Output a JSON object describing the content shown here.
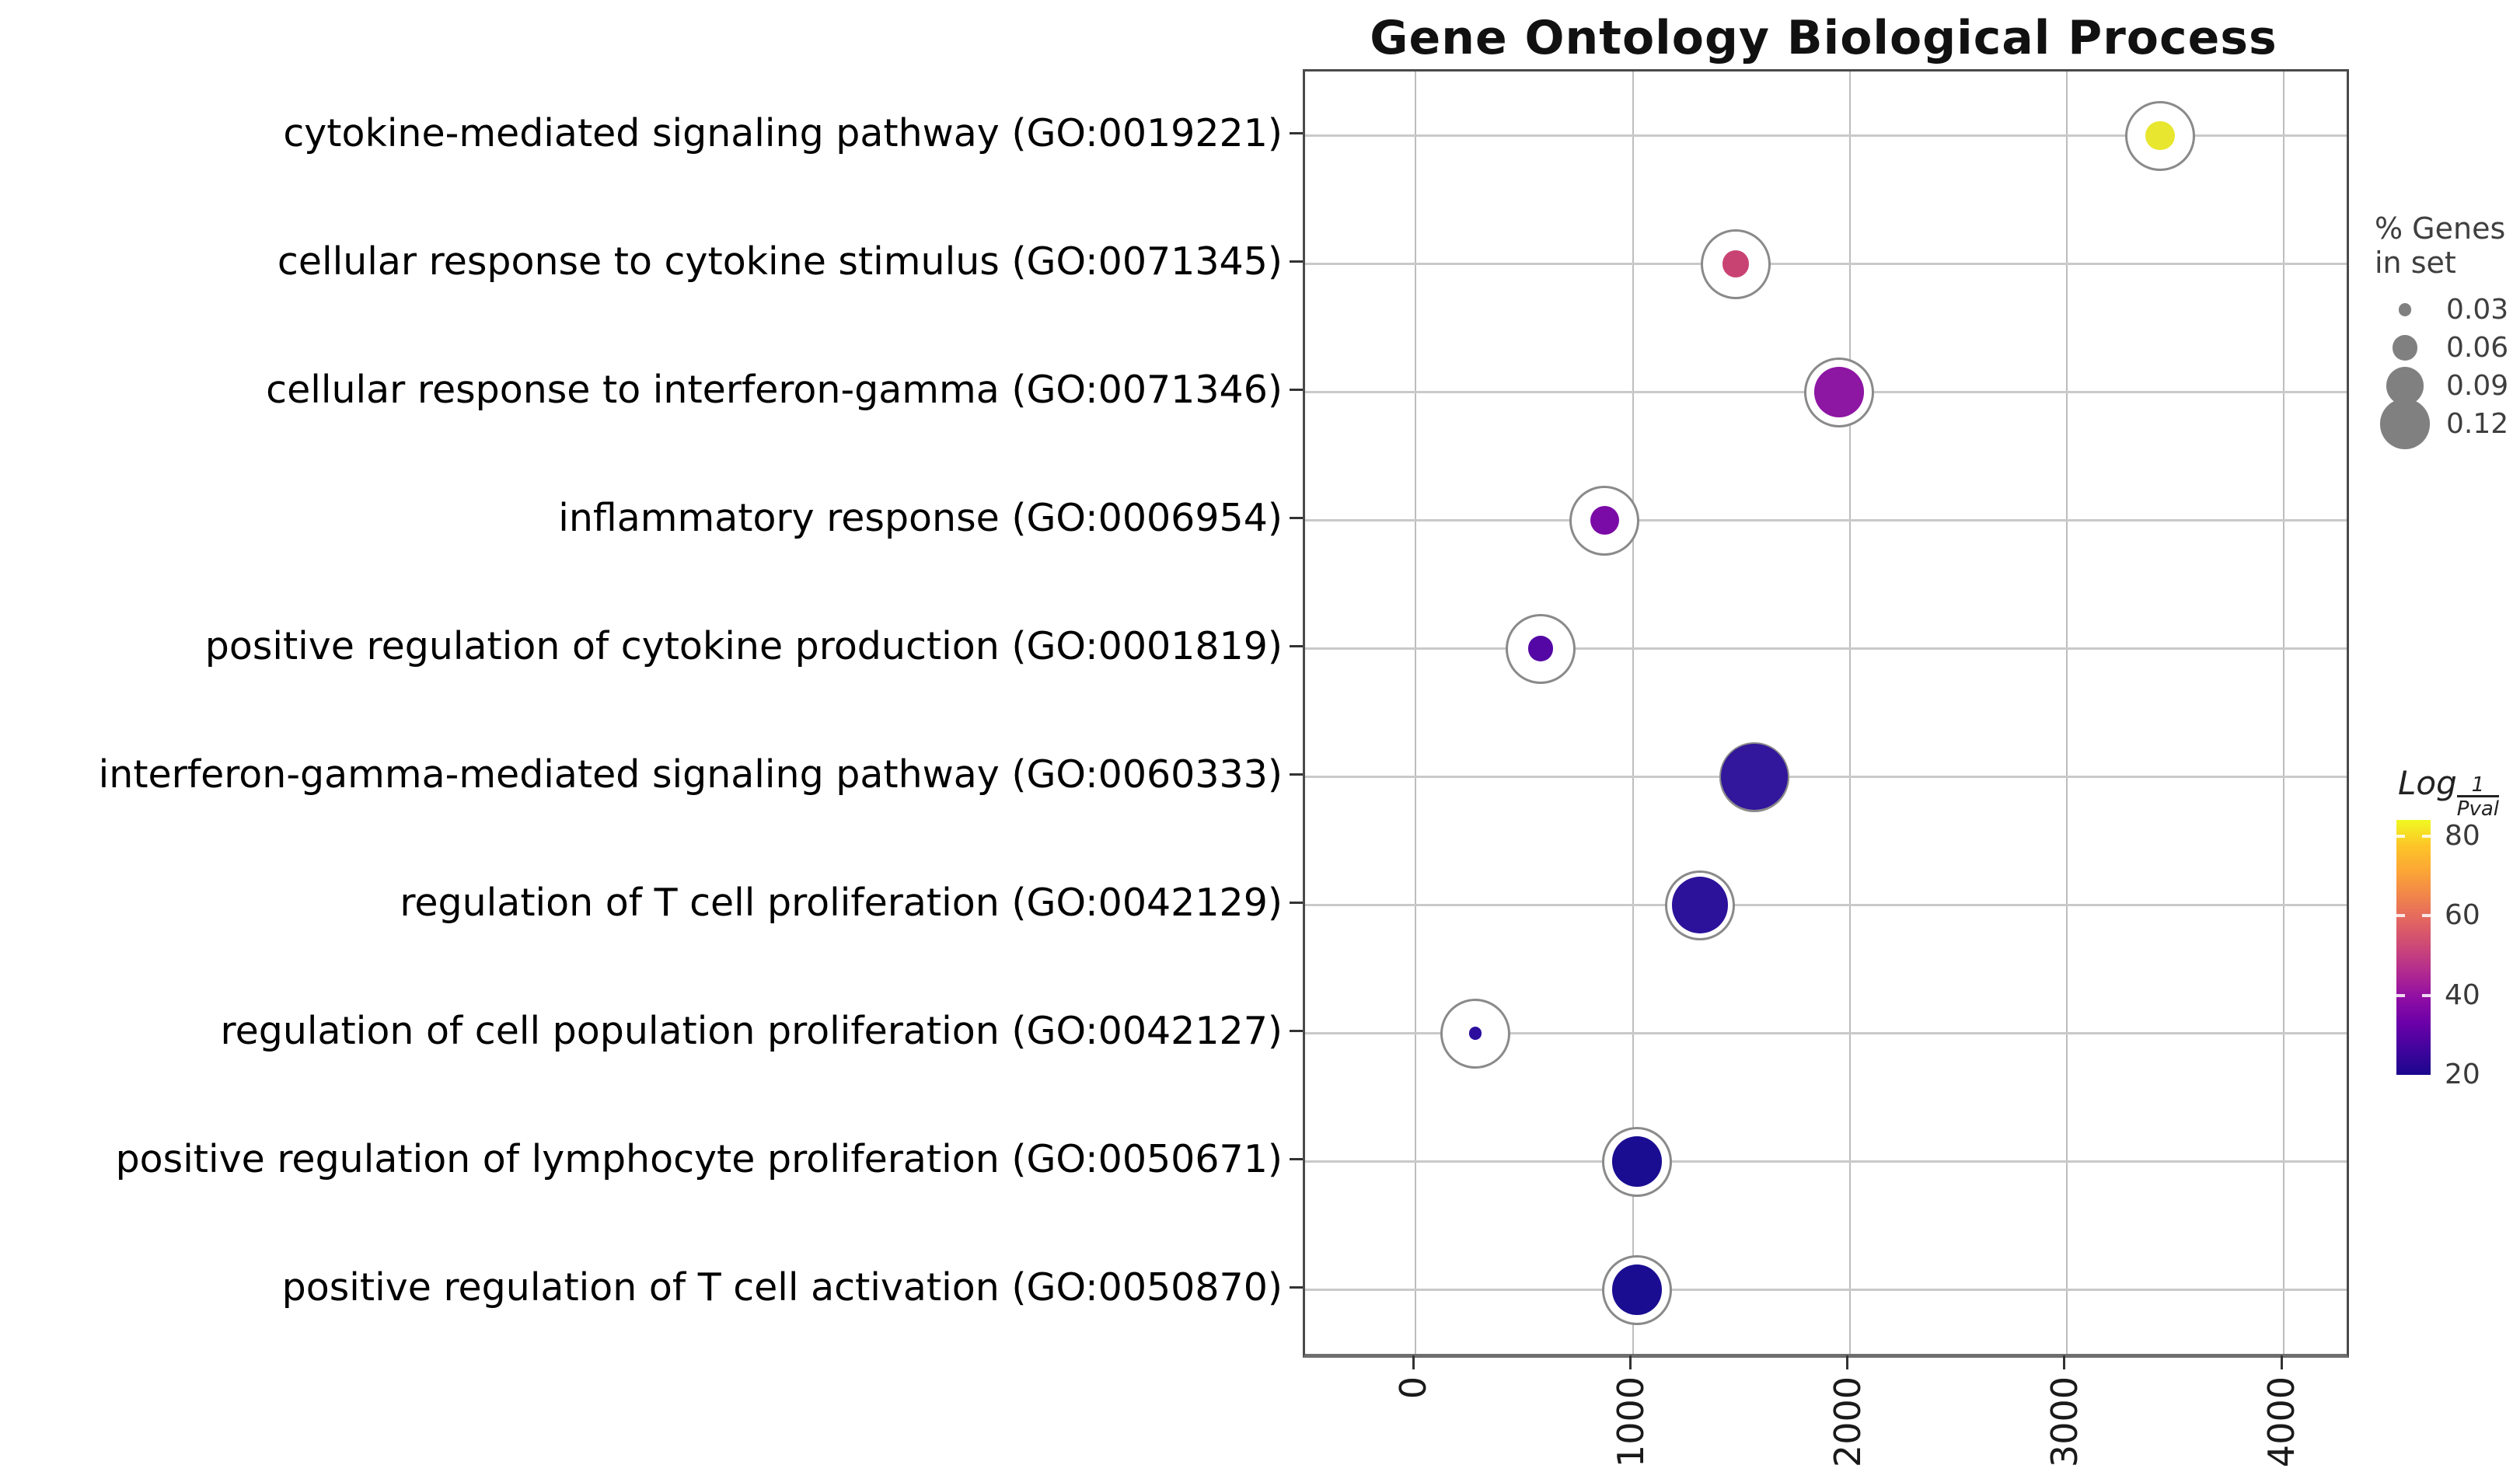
{
  "title": "Gene Ontology Biological Process",
  "chart_data": {
    "type": "bubble",
    "title": "Gene Ontology Biological Process",
    "xlabel": "",
    "ylabel": "",
    "grid": true,
    "legend_position": "right",
    "x_ticks": [
      0,
      1000,
      2000,
      3000,
      4000
    ],
    "xlim": [
      -510,
      4290
    ],
    "categories": [
      "cytokine-mediated signaling pathway (GO:0019221)",
      "cellular response to cytokine stimulus (GO:0071345)",
      "cellular response to interferon-gamma (GO:0071346)",
      "inflammatory response (GO:0006954)",
      "positive regulation of cytokine production (GO:0001819)",
      "interferon-gamma-mediated signaling pathway (GO:0060333)",
      "regulation of T cell proliferation (GO:0042129)",
      "regulation of cell population proliferation (GO:0042127)",
      "positive regulation of lymphocyte proliferation (GO:0050671)",
      "positive regulation of T cell activation (GO:0050870)"
    ],
    "points": [
      {
        "term": "cytokine-mediated signaling pathway (GO:0019221)",
        "x_genes": 3430,
        "pct_genes_in_set": 0.07,
        "log_inv_pval": 83,
        "color": "#e8e62e"
      },
      {
        "term": "cellular response to cytokine stimulus (GO:0071345)",
        "x_genes": 1475,
        "pct_genes_in_set": 0.065,
        "log_inv_pval": 55,
        "color": "#c94372"
      },
      {
        "term": "cellular response to interferon-gamma (GO:0071346)",
        "x_genes": 1950,
        "pct_genes_in_set": 0.12,
        "log_inv_pval": 43,
        "color": "#8d16a3"
      },
      {
        "term": "inflammatory response (GO:0006954)",
        "x_genes": 870,
        "pct_genes_in_set": 0.07,
        "log_inv_pval": 37,
        "color": "#7a0ba6"
      },
      {
        "term": "positive regulation of cytokine production (GO:0001819)",
        "x_genes": 575,
        "pct_genes_in_set": 0.06,
        "log_inv_pval": 31,
        "color": "#5407a4"
      },
      {
        "term": "interferon-gamma-mediated signaling pathway (GO:0060333)",
        "x_genes": 1560,
        "pct_genes_in_set": 0.16,
        "log_inv_pval": 24,
        "color": "#32169b"
      },
      {
        "term": "regulation of T cell proliferation (GO:0042129)",
        "x_genes": 1310,
        "pct_genes_in_set": 0.135,
        "log_inv_pval": 23,
        "color": "#2c129b"
      },
      {
        "term": "regulation of cell population proliferation (GO:0042127)",
        "x_genes": 275,
        "pct_genes_in_set": 0.03,
        "log_inv_pval": 24,
        "color": "#2b0e9d"
      },
      {
        "term": "positive regulation of lymphocyte proliferation (GO:0050671)",
        "x_genes": 1020,
        "pct_genes_in_set": 0.12,
        "log_inv_pval": 20,
        "color": "#1a0d91"
      },
      {
        "term": "positive regulation of T cell activation (GO:0050870)",
        "x_genes": 1020,
        "pct_genes_in_set": 0.12,
        "log_inv_pval": 20,
        "color": "#1a0d91"
      }
    ],
    "size_legend": {
      "title_line1": "% Genes",
      "title_line2": "in set",
      "values": [
        "0.03",
        "0.06",
        "0.09",
        "0.12"
      ],
      "circle_color": "#808080"
    },
    "colorbar": {
      "title_log": "Log",
      "title_numerator": "1",
      "title_denominator": "Pval",
      "ticks": [
        "80",
        "60",
        "40",
        "20"
      ],
      "value_top": 84,
      "value_bottom": 20,
      "gradient_top_to_bottom": [
        [
          "0%",
          "#f0f921"
        ],
        [
          "10%",
          "#fdc527"
        ],
        [
          "20%",
          "#fca636"
        ],
        [
          "30%",
          "#f1844b"
        ],
        [
          "40%",
          "#e16462"
        ],
        [
          "50%",
          "#cc4778"
        ],
        [
          "60%",
          "#b12a90"
        ],
        [
          "70%",
          "#8f0da4"
        ],
        [
          "80%",
          "#6a00a8"
        ],
        [
          "90%",
          "#41049d"
        ],
        [
          "100%",
          "#1b068d"
        ]
      ]
    }
  }
}
